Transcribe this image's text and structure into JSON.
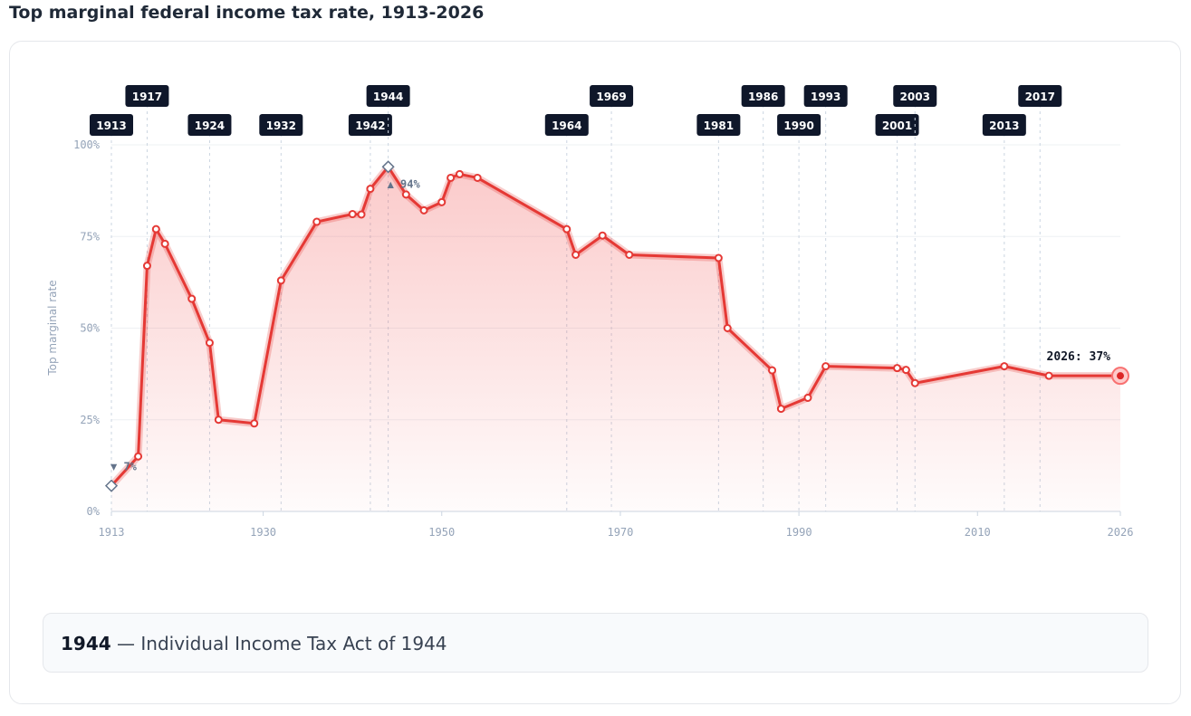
{
  "chart_data": {
    "type": "line",
    "title": "Top marginal federal income tax rate, 1913-2026",
    "y_label": "Top marginal rate",
    "x": [
      1913,
      1916,
      1917,
      1918,
      1919,
      1922,
      1924,
      1925,
      1929,
      1932,
      1936,
      1940,
      1941,
      1942,
      1944,
      1946,
      1948,
      1950,
      1951,
      1952,
      1954,
      1964,
      1965,
      1968,
      1971,
      1981,
      1982,
      1987,
      1988,
      1991,
      1993,
      2001,
      2002,
      2003,
      2013,
      2018,
      2026
    ],
    "series": [
      {
        "name": "Top marginal rate",
        "color": "#e53935",
        "values": [
          7,
          15,
          67,
          77,
          73,
          58,
          46,
          25,
          24,
          63,
          79,
          81.1,
          81,
          88,
          94,
          86.45,
          82.13,
          84.36,
          91,
          92,
          91,
          77,
          70,
          75.25,
          70,
          69.13,
          50,
          38.5,
          28,
          31,
          39.6,
          39.1,
          38.6,
          35,
          39.6,
          37,
          37
        ]
      }
    ],
    "xlim": [
      1913,
      2026
    ],
    "xticks": [
      1913,
      1930,
      1950,
      1970,
      1990,
      2010,
      2026
    ],
    "ylim": [
      0,
      100
    ],
    "yticks": [
      {
        "value": 0,
        "label": "0%"
      },
      {
        "value": 25,
        "label": "25%"
      },
      {
        "value": 50,
        "label": "50%"
      },
      {
        "value": 75,
        "label": "75%"
      },
      {
        "value": 100,
        "label": "100%"
      }
    ],
    "grid": true,
    "events": [
      {
        "year": 1913,
        "label": "1913"
      },
      {
        "year": 1917,
        "label": "1917"
      },
      {
        "year": 1924,
        "label": "1924"
      },
      {
        "year": 1932,
        "label": "1932"
      },
      {
        "year": 1942,
        "label": "1942"
      },
      {
        "year": 1944,
        "label": "1944"
      },
      {
        "year": 1964,
        "label": "1964"
      },
      {
        "year": 1969,
        "label": "1969"
      },
      {
        "year": 1981,
        "label": "1981"
      },
      {
        "year": 1986,
        "label": "1986"
      },
      {
        "year": 1990,
        "label": "1990"
      },
      {
        "year": 1993,
        "label": "1993"
      },
      {
        "year": 2001,
        "label": "2001"
      },
      {
        "year": 2003,
        "label": "2003"
      },
      {
        "year": 2013,
        "label": "2013"
      },
      {
        "year": 2017,
        "label": "2017"
      }
    ],
    "annotations": [
      {
        "x": 1913,
        "y": 7,
        "label": "▼ 7%"
      },
      {
        "x": 1944,
        "y": 94,
        "label": "▲ 94%"
      }
    ],
    "end_label": {
      "x": 2026,
      "y": 37,
      "label": "2026: 37%"
    },
    "footer": {
      "year": "1944",
      "text": "— Individual Income Tax Act of 1944"
    }
  }
}
